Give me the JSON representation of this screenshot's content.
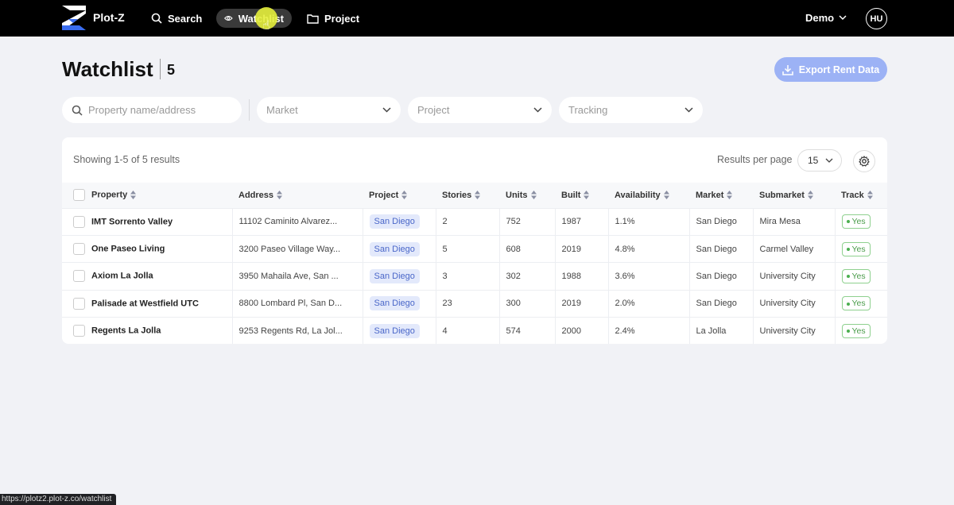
{
  "nav": {
    "brand": "Plot-Z",
    "search_label": "Search",
    "watchlist_label": "Watchlist",
    "project_label": "Project",
    "account_label": "Demo",
    "avatar_initials": "HU"
  },
  "header": {
    "title": "Watchlist",
    "count": "5",
    "export_label": "Export Rent Data"
  },
  "filters": {
    "search_placeholder": "Property name/address",
    "market_placeholder": "Market",
    "project_placeholder": "Project",
    "tracking_placeholder": "Tracking"
  },
  "table": {
    "showing_text": "Showing 1-5 of 5 results",
    "results_per_page_label": "Results per page",
    "results_per_page_value": "15",
    "columns": [
      "Property",
      "Address",
      "Project",
      "Stories",
      "Units",
      "Built",
      "Availability",
      "Market",
      "Submarket",
      "Track"
    ],
    "rows": [
      {
        "property": "IMT Sorrento Valley",
        "address": "11102 Caminito Alvarez...",
        "project": "San Diego",
        "stories": "2",
        "units": "752",
        "built": "1987",
        "availability": "1.1%",
        "market": "San Diego",
        "submarket": "Mira Mesa",
        "track": "Yes"
      },
      {
        "property": "One Paseo Living",
        "address": "3200 Paseo Village Way...",
        "project": "San Diego",
        "stories": "5",
        "units": "608",
        "built": "2019",
        "availability": "4.8%",
        "market": "San Diego",
        "submarket": "Carmel Valley",
        "track": "Yes"
      },
      {
        "property": "Axiom La Jolla",
        "address": "3950 Mahaila Ave, San ...",
        "project": "San Diego",
        "stories": "3",
        "units": "302",
        "built": "1988",
        "availability": "3.6%",
        "market": "San Diego",
        "submarket": "University City",
        "track": "Yes"
      },
      {
        "property": "Palisade at Westfield UTC",
        "address": "8800 Lombard Pl, San D...",
        "project": "San Diego",
        "stories": "23",
        "units": "300",
        "built": "2019",
        "availability": "2.0%",
        "market": "San Diego",
        "submarket": "University City",
        "track": "Yes"
      },
      {
        "property": "Regents La Jolla",
        "address": "9253 Regents Rd, La Jol...",
        "project": "San Diego",
        "stories": "4",
        "units": "574",
        "built": "2000",
        "availability": "2.4%",
        "market": "La Jolla",
        "submarket": "University City",
        "track": "Yes"
      }
    ]
  },
  "status_bar_url": "https://plotz2.plot-z.co/watchlist",
  "colors": {
    "accent": "#9cb2f5",
    "pill_bg": "#e3e9fb",
    "track_green": "#4caf50"
  }
}
